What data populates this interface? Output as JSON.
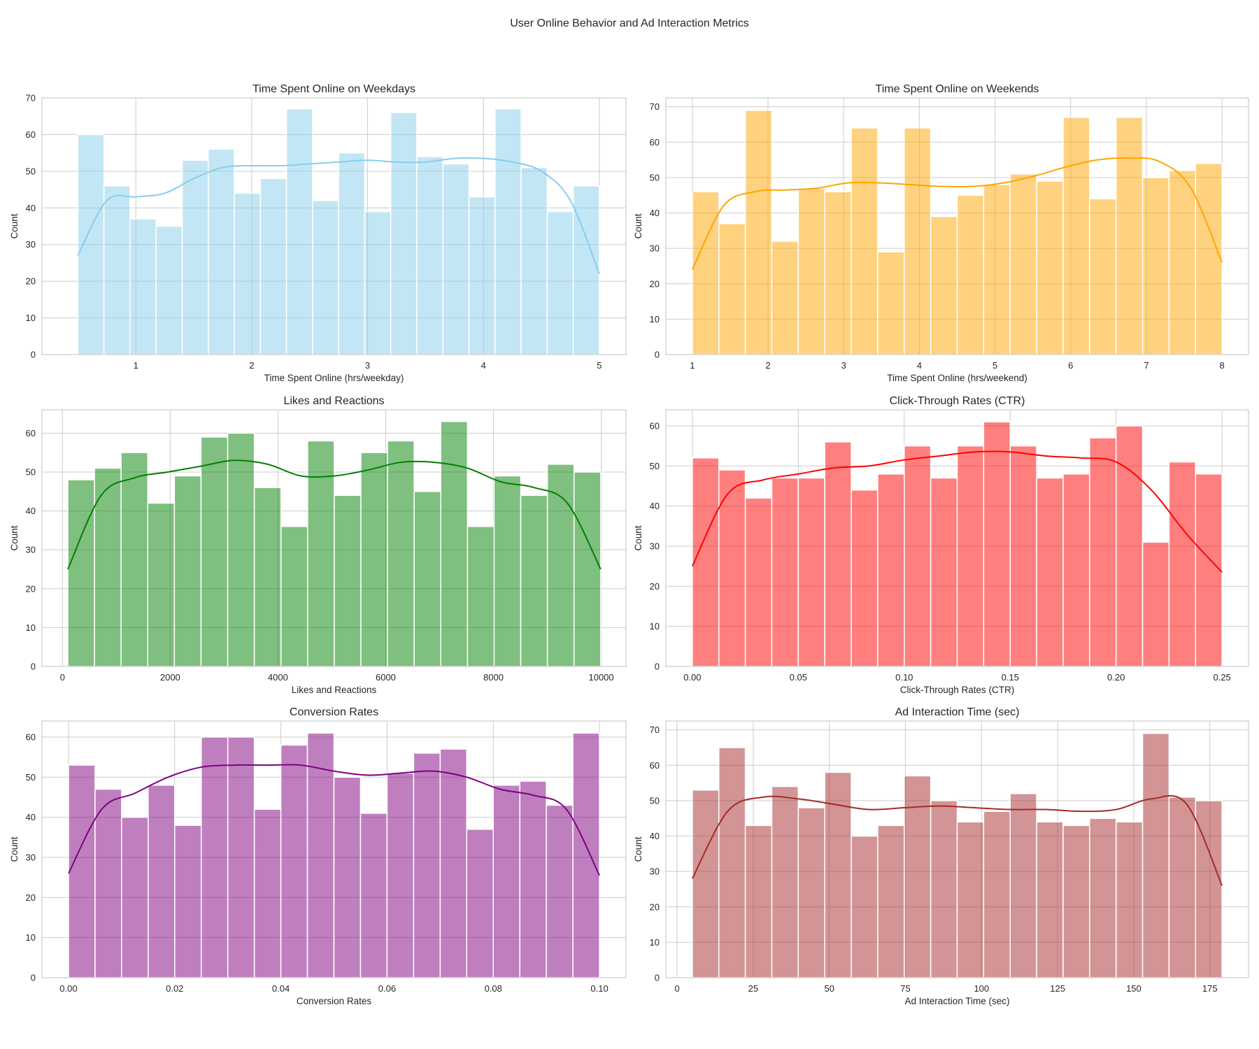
{
  "suptitle": "User Online Behavior and Ad Interaction Metrics",
  "chart_data": [
    {
      "type": "bar",
      "title": "Time Spent Online on Weekdays",
      "xlabel": "Time Spent Online (hrs/weekday)",
      "ylabel": "Count",
      "color": "#87ceeb",
      "kde_color": "#87ceeb",
      "bin_start": 0.5,
      "bin_end": 5.0,
      "counts": [
        60,
        46,
        37,
        35,
        53,
        56,
        44,
        48,
        67,
        42,
        55,
        39,
        66,
        54,
        52,
        43,
        67,
        51,
        39,
        46
      ],
      "kde": [
        27,
        42,
        43,
        44,
        48,
        51,
        51.5,
        51.5,
        52,
        52.5,
        53,
        52.5,
        52.5,
        53.5,
        53.5,
        52.5,
        50,
        42,
        22
      ],
      "xlim": [
        0.19,
        5.23
      ],
      "ylim": [
        0,
        70
      ],
      "xticks": [
        1,
        2,
        3,
        4,
        5
      ],
      "yticks": [
        0,
        10,
        20,
        30,
        40,
        50,
        60,
        70
      ],
      "xtick_labels": [
        "1",
        "2",
        "3",
        "4",
        "5"
      ]
    },
    {
      "type": "bar",
      "title": "Time Spent Online on Weekends",
      "xlabel": "Time Spent Online (hrs/weekend)",
      "ylabel": "Count",
      "color": "#ffa500",
      "kde_color": "#ffa500",
      "bin_start": 1.0,
      "bin_end": 8.0,
      "counts": [
        46,
        37,
        69,
        32,
        47,
        46,
        64,
        29,
        64,
        39,
        45,
        48,
        51,
        49,
        67,
        44,
        67,
        50,
        52,
        54
      ],
      "kde": [
        24,
        42,
        46,
        46.5,
        47,
        48.5,
        48.5,
        48,
        47.5,
        47.5,
        48.5,
        50.5,
        53,
        55,
        55.5,
        54.5,
        47,
        26
      ],
      "xlim": [
        0.65,
        8.35
      ],
      "ylim": [
        0,
        72.5
      ],
      "xticks": [
        1,
        2,
        3,
        4,
        5,
        6,
        7,
        8
      ],
      "yticks": [
        0,
        10,
        20,
        30,
        40,
        50,
        60,
        70
      ],
      "xtick_labels": [
        "1",
        "2",
        "3",
        "4",
        "5",
        "6",
        "7",
        "8"
      ]
    },
    {
      "type": "bar",
      "title": "Likes and Reactions",
      "xlabel": "Likes and Reactions",
      "ylabel": "Count",
      "color": "#008000",
      "kde_color": "#008000",
      "bin_start": 100,
      "bin_end": 9990,
      "counts": [
        48,
        51,
        55,
        42,
        49,
        59,
        60,
        46,
        36,
        58,
        44,
        55,
        58,
        45,
        63,
        36,
        49,
        44,
        52,
        50
      ],
      "kde": [
        25,
        44,
        48.5,
        50,
        51.5,
        53,
        52,
        49,
        49,
        50.5,
        52.5,
        52.5,
        51,
        47.5,
        46,
        42,
        25
      ],
      "xlim": [
        -380,
        10460
      ],
      "ylim": [
        0,
        66
      ],
      "xticks": [
        0,
        2000,
        4000,
        6000,
        8000,
        10000
      ],
      "yticks": [
        0,
        10,
        20,
        30,
        40,
        50,
        60
      ],
      "xtick_labels": [
        "0",
        "2000",
        "4000",
        "6000",
        "8000",
        "10000"
      ]
    },
    {
      "type": "bar",
      "title": "Click-Through Rates (CTR)",
      "xlabel": "Click-Through Rates (CTR)",
      "ylabel": "Count",
      "color": "#ff0000",
      "kde_color": "#ff0000",
      "bin_start": 0.0,
      "bin_end": 0.25,
      "counts": [
        52,
        49,
        42,
        47,
        47,
        56,
        44,
        48,
        55,
        47,
        55,
        61,
        55,
        47,
        48,
        57,
        60,
        31,
        51,
        48
      ],
      "kde": [
        25,
        43,
        46.5,
        48,
        49.5,
        50,
        51.5,
        52.5,
        53.5,
        53.5,
        52.5,
        52,
        51,
        44,
        33,
        23.5
      ],
      "xlim": [
        -0.0125,
        0.2625
      ],
      "ylim": [
        0,
        64
      ],
      "xticks": [
        0.0,
        0.05,
        0.1,
        0.15,
        0.2,
        0.25
      ],
      "yticks": [
        0,
        10,
        20,
        30,
        40,
        50,
        60
      ],
      "xtick_labels": [
        "0.00",
        "0.05",
        "0.10",
        "0.15",
        "0.20",
        "0.25"
      ]
    },
    {
      "type": "bar",
      "title": "Conversion Rates",
      "xlabel": "Conversion Rates",
      "ylabel": "Count",
      "color": "#800080",
      "kde_color": "#800080",
      "bin_start": 0.0,
      "bin_end": 0.1,
      "counts": [
        53,
        47,
        40,
        48,
        38,
        60,
        60,
        42,
        58,
        61,
        50,
        41,
        51,
        56,
        57,
        37,
        48,
        49,
        43,
        61
      ],
      "kde": [
        26,
        42,
        46,
        50,
        52.5,
        53,
        53,
        53,
        51.5,
        50.5,
        51,
        51.5,
        50,
        47,
        45.5,
        42,
        25.5
      ],
      "xlim": [
        -0.005,
        0.105
      ],
      "ylim": [
        0,
        64
      ],
      "xticks": [
        0.0,
        0.02,
        0.04,
        0.06,
        0.08,
        0.1
      ],
      "yticks": [
        0,
        10,
        20,
        30,
        40,
        50,
        60
      ],
      "xtick_labels": [
        "0.00",
        "0.02",
        "0.04",
        "0.06",
        "0.08",
        "0.10"
      ]
    },
    {
      "type": "bar",
      "title": "Ad Interaction Time (sec)",
      "xlabel": "Ad Interaction Time (sec)",
      "ylabel": "Count",
      "color": "#a52a2a",
      "kde_color": "#a52a2a",
      "bin_start": 5,
      "bin_end": 179,
      "counts": [
        53,
        65,
        43,
        54,
        48,
        58,
        40,
        43,
        57,
        50,
        44,
        47,
        52,
        44,
        43,
        45,
        44,
        69,
        51,
        50
      ],
      "kde": [
        28,
        47,
        51,
        50.5,
        49,
        47.5,
        48,
        48.5,
        48,
        47.5,
        47.5,
        47,
        47.5,
        50.5,
        49,
        26
      ],
      "xlim": [
        -3.7,
        187.7
      ],
      "ylim": [
        0,
        72.5
      ],
      "xticks": [
        0,
        25,
        50,
        75,
        100,
        125,
        150,
        175
      ],
      "yticks": [
        0,
        10,
        20,
        30,
        40,
        50,
        60,
        70
      ],
      "xtick_labels": [
        "0",
        "25",
        "50",
        "75",
        "100",
        "125",
        "150",
        "175"
      ]
    }
  ]
}
